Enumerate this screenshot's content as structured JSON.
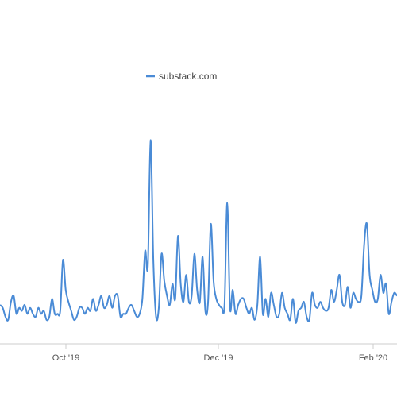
{
  "chart_data": {
    "type": "line",
    "legend_position": "top-center",
    "grid": false,
    "x_ticks": [
      "Oct '19",
      "Dec '19",
      "Feb '20"
    ],
    "series": [
      {
        "name": "substack.com",
        "color": "#4a8bd6",
        "values": [
          13,
          12,
          9,
          8,
          14,
          16,
          10,
          12,
          11,
          13,
          10,
          12,
          10,
          9,
          12,
          10,
          11,
          8,
          9,
          15,
          10,
          10,
          11,
          28,
          18,
          14,
          11,
          8,
          9,
          12,
          12,
          10,
          12,
          11,
          15,
          11,
          13,
          16,
          12,
          13,
          16,
          12,
          16,
          16,
          9,
          10,
          10,
          12,
          13,
          11,
          9,
          10,
          15,
          31,
          26,
          68,
          28,
          9,
          12,
          30,
          21,
          16,
          13,
          20,
          15,
          36,
          20,
          14,
          23,
          14,
          16,
          30,
          18,
          14,
          29,
          11,
          14,
          40,
          21,
          15,
          13,
          12,
          13,
          47,
          12,
          18,
          10,
          13,
          15,
          15,
          12,
          10,
          12,
          8,
          13,
          29,
          10,
          15,
          9,
          17,
          13,
          9,
          10,
          17,
          12,
          10,
          8,
          15,
          7,
          11,
          12,
          14,
          9,
          8,
          17,
          13,
          12,
          14,
          12,
          11,
          12,
          18,
          14,
          18,
          23,
          14,
          13,
          19,
          12,
          17,
          15,
          14,
          16,
          33,
          40,
          23,
          18,
          14,
          15,
          23,
          17,
          20,
          10,
          14,
          17,
          16
        ]
      }
    ]
  }
}
